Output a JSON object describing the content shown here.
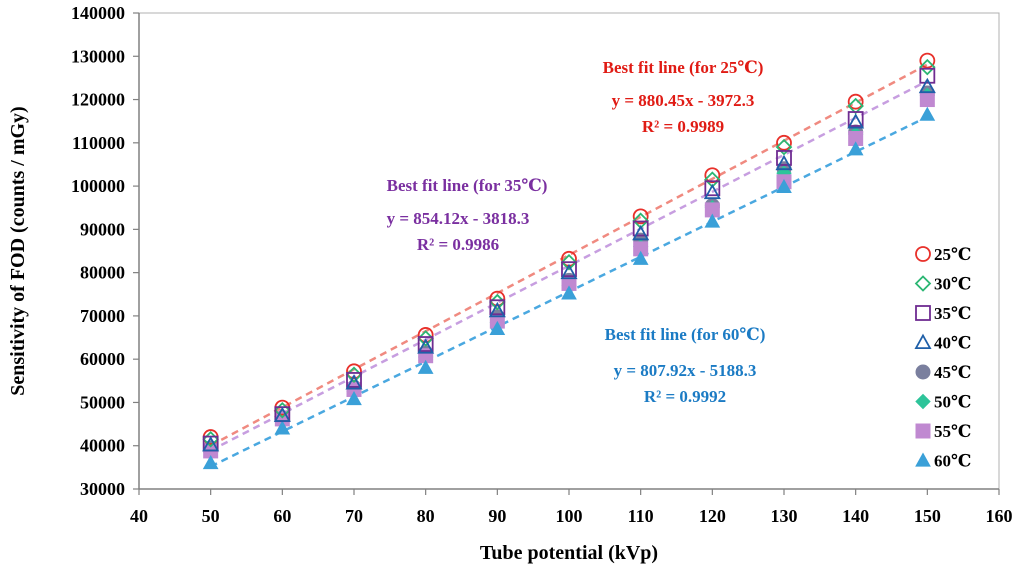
{
  "chart_data": {
    "type": "scatter",
    "xlabel": "Tube potential (kVp)",
    "ylabel": "Sensitivity of FOD (counts / mGy)",
    "xlim": [
      40,
      160
    ],
    "ylim": [
      30000,
      140000
    ],
    "xticks": [
      "40",
      "50",
      "60",
      "70",
      "80",
      "90",
      "100",
      "110",
      "120",
      "130",
      "140",
      "150",
      "160"
    ],
    "yticks": [
      "30000",
      "40000",
      "50000",
      "60000",
      "70000",
      "80000",
      "90000",
      "100000",
      "110000",
      "120000",
      "130000",
      "140000"
    ],
    "grid": false,
    "legend_position": "right",
    "x": [
      50,
      60,
      70,
      80,
      90,
      100,
      110,
      120,
      130,
      140,
      150
    ],
    "series": [
      {
        "name": "25℃",
        "marker": "circle-open",
        "color": "#e8302a",
        "values": [
          42000,
          48800,
          57200,
          65600,
          74000,
          83200,
          93000,
          102500,
          110000,
          119500,
          129000
        ]
      },
      {
        "name": "30℃",
        "marker": "diamond-open",
        "color": "#2bb673",
        "values": [
          41500,
          48200,
          56400,
          64800,
          73200,
          82400,
          92000,
          101500,
          109000,
          118500,
          127500
        ]
      },
      {
        "name": "35℃",
        "marker": "square-open",
        "color": "#6f2c91",
        "values": [
          40500,
          47300,
          55200,
          63500,
          72000,
          80800,
          90200,
          99500,
          106500,
          115500,
          125500
        ]
      },
      {
        "name": "40℃",
        "marker": "triangle-open",
        "color": "#1f5fa8",
        "values": [
          40200,
          47000,
          54500,
          62800,
          71200,
          80000,
          89000,
          98500,
          105200,
          114800,
          123000
        ]
      },
      {
        "name": "45℃",
        "marker": "circle-filled",
        "color": "#7a7f9e",
        "values": [
          39500,
          46500,
          53500,
          61500,
          69800,
          78200,
          87500,
          95500,
          104000,
          112500,
          121500
        ]
      },
      {
        "name": "50℃",
        "marker": "diamond-filled",
        "color": "#2ec49a",
        "values": [
          38500,
          45800,
          52500,
          60500,
          68500,
          77000,
          86000,
          95000,
          103000,
          112000,
          121000
        ]
      },
      {
        "name": "55℃",
        "marker": "square-filled",
        "color": "#c089d1",
        "values": [
          38800,
          46200,
          53000,
          60800,
          68800,
          77500,
          85500,
          94500,
          101000,
          111000,
          120000
        ]
      },
      {
        "name": "60℃",
        "marker": "triangle-filled",
        "color": "#3aa0d8",
        "values": [
          36000,
          44000,
          50800,
          58000,
          67000,
          75200,
          83200,
          91800,
          99800,
          108500,
          116500
        ]
      }
    ],
    "fit_lines": [
      {
        "name": "fit-25",
        "slope": 880.45,
        "intercept": -3972.3,
        "color": "#f08a80"
      },
      {
        "name": "fit-35",
        "slope": 854.12,
        "intercept": -3818.3,
        "color": "#c79ee0"
      },
      {
        "name": "fit-60",
        "slope": 807.92,
        "intercept": -5188.3,
        "color": "#4aa8e0"
      }
    ],
    "annotations": [
      {
        "name": "annotation-25",
        "color": "#e01b14",
        "title": "Best fit line (for 25℃)",
        "equation": "y = 880.45x - 3972.3",
        "r2": "R² = 0.9989"
      },
      {
        "name": "annotation-35",
        "color": "#7a2fa0",
        "title": "Best fit line (for 35℃)",
        "equation": "y = 854.12x - 3818.3",
        "r2": "R² = 0.9986"
      },
      {
        "name": "annotation-60",
        "color": "#1b7bc4",
        "title": "Best fit line (for 60℃)",
        "equation": "y = 807.92x - 5188.3",
        "r2": "R² = 0.9992"
      }
    ]
  }
}
